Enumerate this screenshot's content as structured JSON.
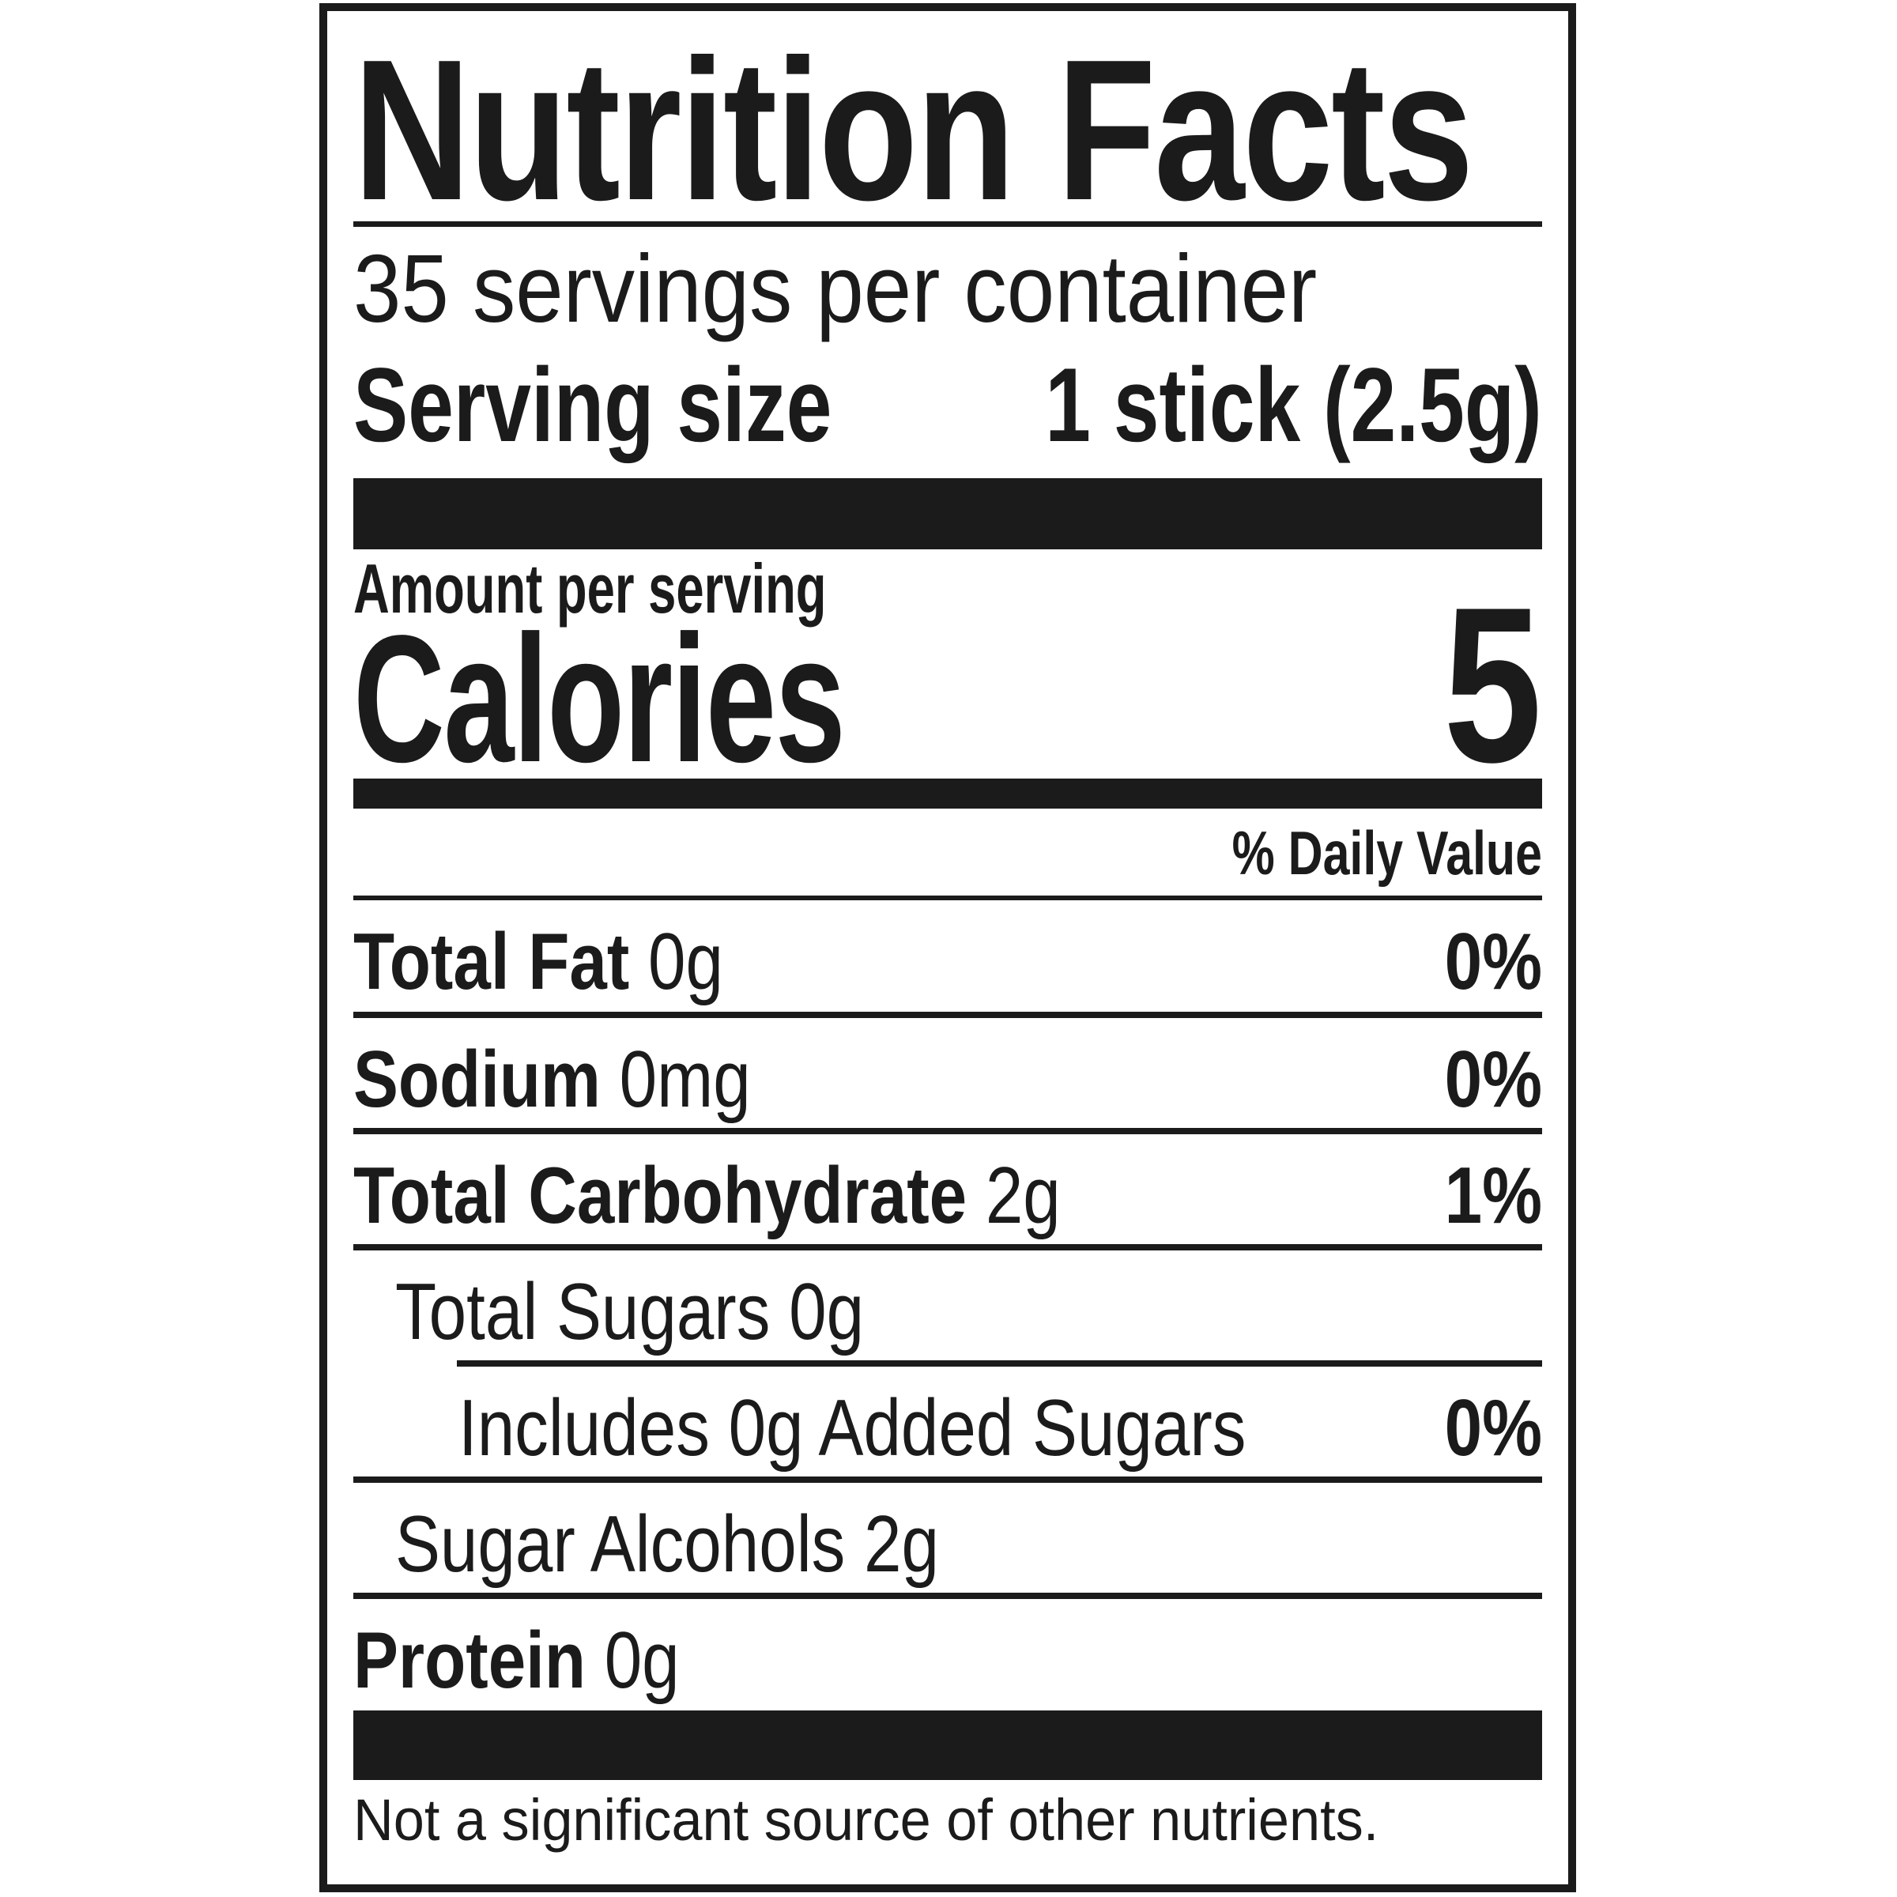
{
  "label": {
    "title": "Nutrition Facts",
    "servings_per_container": "35 servings per container",
    "serving_size": {
      "label": "Serving size",
      "value": "1 stick (2.5g)"
    },
    "amount_per_serving": "Amount per serving",
    "calories": {
      "label": "Calories",
      "value": "5"
    },
    "daily_value_header": "% Daily Value",
    "rows": [
      {
        "name": "Total Fat",
        "amount": "0g",
        "pct": "0%"
      },
      {
        "name": "Sodium",
        "amount": "0mg",
        "pct": "0%"
      },
      {
        "name": "Total Carbohydrate",
        "amount": "2g",
        "pct": "1%"
      },
      {
        "name": "Total Sugars",
        "amount": "0g"
      },
      {
        "name": "Includes 0g Added Sugars",
        "pct": "0%"
      },
      {
        "name": "Sugar Alcohols",
        "amount": "2g"
      },
      {
        "name": "Protein",
        "amount": "0g"
      }
    ],
    "footnote": "Not a significant source of other nutrients."
  }
}
